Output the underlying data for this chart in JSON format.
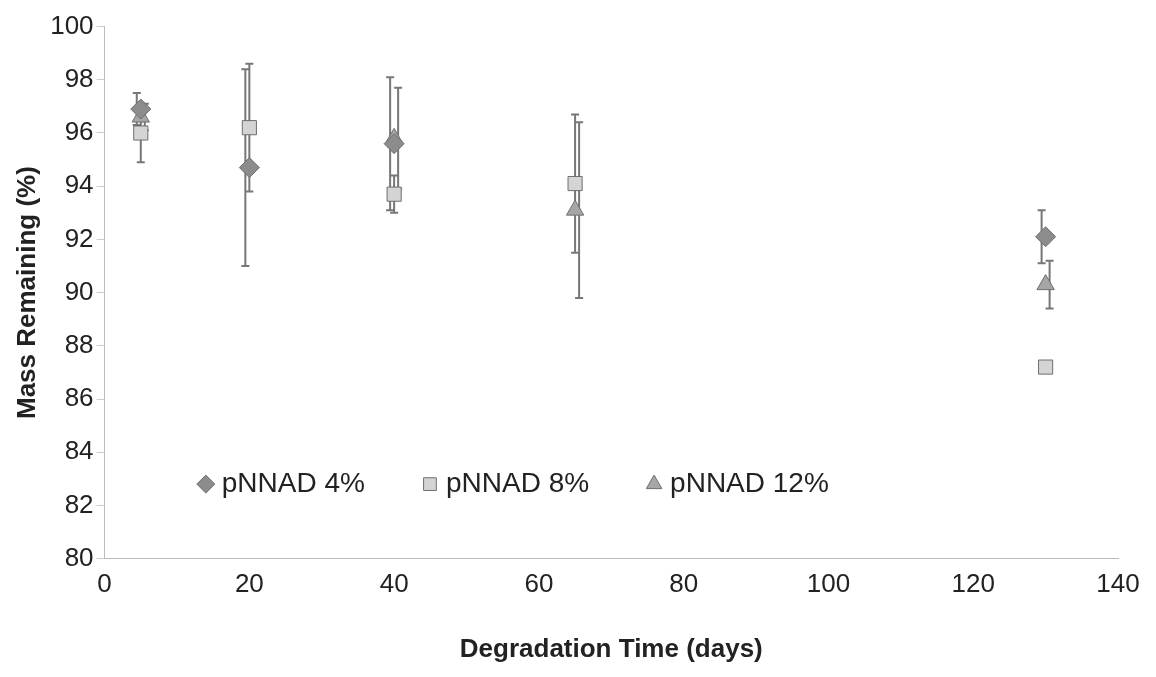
{
  "chart_data": {
    "type": "scatter",
    "xlabel": "Degradation Time (days)",
    "ylabel": "Mass Remaining (%)",
    "x": [
      5,
      20,
      40,
      65,
      130
    ],
    "series": [
      {
        "name": "pNNAD 4%",
        "color": "#8c8c8c",
        "marker": "diamond",
        "values": [
          96.9,
          94.7,
          95.6,
          null,
          92.1
        ],
        "errors": [
          0.6,
          3.7,
          2.5,
          null,
          1.0
        ]
      },
      {
        "name": "pNNAD 8%",
        "color": "#d4d4d4",
        "marker": "square",
        "values": [
          96.0,
          96.2,
          93.7,
          94.1,
          87.2
        ],
        "errors": [
          1.1,
          2.4,
          0.7,
          2.6,
          null
        ]
      },
      {
        "name": "pNNAD 12%",
        "color": "#a6a6a6",
        "marker": "triangle",
        "values": [
          96.6,
          null,
          95.8,
          93.1,
          90.3
        ],
        "errors": [
          0.5,
          null,
          1.9,
          3.3,
          0.9
        ]
      }
    ],
    "xlim": [
      0,
      140
    ],
    "xticks": [
      0,
      20,
      40,
      60,
      80,
      100,
      120,
      140
    ],
    "ylim": [
      80,
      100
    ],
    "yticks": [
      80,
      82,
      84,
      86,
      88,
      90,
      92,
      94,
      96,
      98,
      100
    ],
    "grid": false,
    "legend": "bottom"
  }
}
